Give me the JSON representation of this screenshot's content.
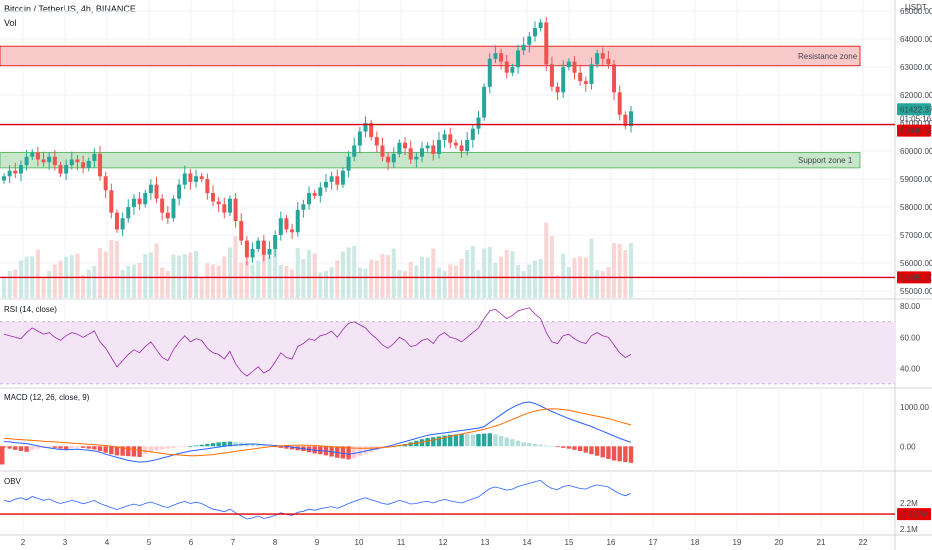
{
  "header": {
    "symbol": "Bitcoin / TetherUS, 4h, BINANCE",
    "volume_label": "Vol",
    "currency": "USDT"
  },
  "colors": {
    "up": "#26a69a",
    "down": "#ef5350",
    "level_line": "#e00000",
    "resistance_fill": "#f8c9c9",
    "support_fill": "#c8e6c9",
    "rsi_band": "#f3e5f5",
    "rsi_line": "#9c27b0",
    "macd_line": "#2962ff",
    "signal_line": "#ff6d00",
    "obv_line": "#2962ff"
  },
  "annotations": {
    "resistance_label": "Resistance zone",
    "support_label": "Support zone 1"
  },
  "panels": {
    "rsi_title": "RSI (14, close)",
    "macd_title": "MACD (12, 26, close, 9)",
    "obv_title": "OBV"
  },
  "chart_data": {
    "type": "candlestick",
    "price_axis": {
      "ticks": [
        "65000.00",
        "64000.00",
        "63000.00",
        "62000.00",
        "61000.00",
        "60000.00",
        "59000.00",
        "58000.00",
        "57000.00",
        "56000.00",
        "55000.00"
      ],
      "ylim": [
        54750,
        65400
      ]
    },
    "price_labels": {
      "last": "61422.37",
      "countdown": "01:05:16",
      "level1": "60946.62",
      "level2": "55485.60"
    },
    "levels": [
      60946.62,
      55485.6
    ],
    "resistance_zone": [
      63050,
      63750
    ],
    "support_zone": [
      59400,
      59950
    ],
    "x_ticks": [
      "2",
      "3",
      "4",
      "5",
      "6",
      "7",
      "8",
      "9",
      "10",
      "11",
      "12",
      "13",
      "14",
      "15",
      "16",
      "17",
      "18",
      "19",
      "20",
      "21",
      "22"
    ],
    "closes": [
      59100,
      59300,
      59200,
      59500,
      59800,
      59950,
      59700,
      59600,
      59800,
      59500,
      59200,
      59500,
      59700,
      59600,
      59400,
      59650,
      59900,
      59100,
      58600,
      57800,
      57200,
      57600,
      58000,
      58300,
      58100,
      58500,
      58800,
      58300,
      57800,
      57600,
      58300,
      58800,
      59200,
      58900,
      59100,
      59000,
      58500,
      58200,
      58100,
      57800,
      58300,
      57500,
      56800,
      56200,
      56500,
      56800,
      56300,
      56500,
      57000,
      57600,
      57200,
      57100,
      57900,
      58100,
      58500,
      58400,
      58700,
      58900,
      59100,
      58800,
      59300,
      59800,
      60200,
      60700,
      61000,
      60500,
      60200,
      59800,
      59600,
      59900,
      60300,
      60100,
      59700,
      59800,
      60100,
      60200,
      59900,
      60400,
      60600,
      60300,
      60200,
      60000,
      60400,
      60800,
      61200,
      62300,
      63300,
      63500,
      63200,
      62800,
      63000,
      63600,
      63800,
      64100,
      64400,
      64600,
      63100,
      62300,
      62100,
      63000,
      63200,
      62800,
      62500,
      62400,
      63100,
      63500,
      63300,
      63100,
      62100,
      61300,
      60900,
      61422
    ],
    "rsi": {
      "ticks": [
        "80.00",
        "60.00",
        "40.00"
      ],
      "ylim": [
        28,
        84
      ],
      "band": [
        30,
        70
      ],
      "values": [
        62,
        61,
        60,
        59,
        63,
        66,
        64,
        62,
        63,
        60,
        58,
        61,
        63,
        62,
        60,
        62,
        64,
        57,
        53,
        47,
        41,
        45,
        49,
        52,
        50,
        54,
        57,
        52,
        47,
        45,
        52,
        57,
        61,
        57,
        59,
        58,
        53,
        50,
        49,
        46,
        51,
        43,
        38,
        35,
        38,
        41,
        37,
        39,
        44,
        50,
        47,
        46,
        54,
        56,
        59,
        58,
        61,
        62,
        64,
        60,
        65,
        69,
        70,
        68,
        66,
        62,
        59,
        55,
        53,
        56,
        60,
        58,
        54,
        55,
        58,
        59,
        56,
        61,
        63,
        60,
        59,
        57,
        60,
        63,
        66,
        72,
        77,
        78,
        75,
        72,
        74,
        77,
        78,
        79,
        75,
        72,
        63,
        57,
        56,
        61,
        62,
        59,
        57,
        56,
        61,
        63,
        61,
        60,
        55,
        50,
        47,
        49
      ],
      "ma": [
        60,
        60,
        60,
        60,
        61,
        61,
        62,
        62,
        62,
        62,
        61,
        61,
        61,
        61,
        61,
        61,
        61,
        60,
        59,
        57,
        55,
        54,
        53,
        52,
        51,
        51,
        51,
        51,
        50,
        50,
        50,
        51,
        52,
        53,
        54,
        55,
        55,
        54,
        54,
        53,
        52,
        51,
        49,
        47,
        45,
        44,
        43,
        42,
        42,
        42,
        42,
        43,
        44,
        45,
        47,
        48,
        50,
        52,
        54,
        55,
        57,
        59,
        61,
        62,
        63,
        63,
        63,
        62,
        61,
        60,
        59,
        58,
        57,
        57,
        57,
        57,
        57,
        58,
        58,
        59,
        59,
        59,
        59,
        60,
        61,
        63,
        65,
        67,
        69,
        70,
        72,
        73,
        74,
        75,
        75,
        75,
        74,
        72,
        70,
        69,
        67,
        65,
        63,
        61,
        60,
        59,
        59,
        59,
        58,
        57,
        56,
        55
      ]
    },
    "macd": {
      "ticks": [
        "1000.00",
        "0.00"
      ],
      "ylim": [
        -600,
        1450
      ],
      "histogram": [
        -30,
        -60,
        -90,
        -120,
        -140,
        -80,
        -60,
        -40,
        -30,
        -40,
        -60,
        -80,
        -50,
        -30,
        -40,
        -60,
        -80,
        -120,
        -160,
        -200,
        -230,
        -240,
        -250,
        -260,
        -270,
        -200,
        -150,
        -100,
        -80,
        -60,
        -40,
        -20,
        -10,
        0,
        20,
        40,
        60,
        80,
        100,
        110,
        120,
        110,
        100,
        80,
        60,
        40,
        20,
        0,
        -20,
        -40,
        -60,
        -80,
        -100,
        -120,
        -150,
        -180,
        -200,
        -230,
        -260,
        -290,
        -310,
        -330,
        -300,
        -250,
        -200,
        -150,
        -100,
        -60,
        -30,
        0,
        30,
        60,
        100,
        140,
        180,
        210,
        230,
        250,
        270,
        290,
        300,
        320,
        310,
        300,
        310,
        320,
        330,
        300,
        260,
        220,
        180,
        140,
        100,
        80,
        60,
        40,
        20,
        0,
        -20,
        -40,
        -60,
        -90,
        -120,
        -160,
        -200,
        -240,
        -280,
        -320,
        -360,
        -380,
        -400,
        -420,
        -440,
        -460
      ],
      "macd": [
        120,
        110,
        90,
        80,
        70,
        40,
        10,
        -20,
        -40,
        -60,
        -80,
        -90,
        -80,
        -70,
        -90,
        -100,
        -120,
        -150,
        -200,
        -240,
        -280,
        -320,
        -360,
        -380,
        -400,
        -390,
        -370,
        -340,
        -300,
        -260,
        -220,
        -180,
        -150,
        -120,
        -100,
        -80,
        -60,
        -40,
        -20,
        0,
        20,
        30,
        40,
        50,
        60,
        50,
        40,
        30,
        20,
        10,
        0,
        -20,
        -40,
        -60,
        -80,
        -100,
        -110,
        -120,
        -140,
        -160,
        -180,
        -200,
        -180,
        -150,
        -120,
        -90,
        -60,
        -30,
        0,
        40,
        80,
        120,
        160,
        200,
        240,
        280,
        300,
        320,
        340,
        360,
        380,
        400,
        420,
        440,
        460,
        500,
        600,
        700,
        800,
        900,
        980,
        1050,
        1100,
        1120,
        1080,
        1020,
        950,
        880,
        820,
        760,
        700,
        650,
        600,
        550,
        500,
        440,
        380,
        320,
        260,
        200,
        150,
        100
      ],
      "signal": [
        200,
        190,
        180,
        170,
        160,
        150,
        140,
        130,
        120,
        110,
        100,
        90,
        80,
        70,
        60,
        50,
        40,
        30,
        20,
        0,
        -20,
        -40,
        -60,
        -80,
        -100,
        -120,
        -140,
        -160,
        -180,
        -200,
        -210,
        -220,
        -230,
        -240,
        -240,
        -230,
        -220,
        -210,
        -190,
        -170,
        -150,
        -130,
        -110,
        -90,
        -70,
        -50,
        -30,
        -10,
        0,
        10,
        20,
        25,
        30,
        30,
        25,
        20,
        10,
        0,
        -10,
        -20,
        -30,
        -40,
        -45,
        -50,
        -50,
        -45,
        -40,
        -30,
        -20,
        0,
        20,
        40,
        60,
        80,
        100,
        130,
        160,
        190,
        220,
        250,
        280,
        310,
        340,
        370,
        400,
        430,
        470,
        510,
        560,
        620,
        680,
        740,
        800,
        850,
        890,
        920,
        940,
        950,
        945,
        930,
        910,
        880,
        850,
        820,
        790,
        760,
        730,
        700,
        660,
        620,
        580,
        540
      ],
      "zero": 0
    },
    "obv": {
      "ticks": [
        "2.2M",
        "2.1M"
      ],
      "highlight": "2.157M",
      "ylim": [
        2080000,
        2320000
      ],
      "level": 2157000,
      "values": [
        2210000,
        2205000,
        2215000,
        2220000,
        2212000,
        2225000,
        2218000,
        2210000,
        2216000,
        2205000,
        2198000,
        2204000,
        2210000,
        2205000,
        2197000,
        2203000,
        2210000,
        2198000,
        2190000,
        2182000,
        2175000,
        2182000,
        2190000,
        2196000,
        2190000,
        2198000,
        2204000,
        2196000,
        2188000,
        2182000,
        2192000,
        2200000,
        2206000,
        2198000,
        2203000,
        2198000,
        2186000,
        2176000,
        2172000,
        2166000,
        2176000,
        2162000,
        2150000,
        2138000,
        2142000,
        2150000,
        2140000,
        2145000,
        2152000,
        2162000,
        2156000,
        2152000,
        2164000,
        2168000,
        2176000,
        2172000,
        2178000,
        2182000,
        2186000,
        2180000,
        2188000,
        2198000,
        2206000,
        2214000,
        2220000,
        2212000,
        2206000,
        2198000,
        2195000,
        2202000,
        2210000,
        2204000,
        2196000,
        2198000,
        2204000,
        2206000,
        2200000,
        2208000,
        2214000,
        2208000,
        2204000,
        2200000,
        2208000,
        2216000,
        2224000,
        2240000,
        2256000,
        2262000,
        2256000,
        2250000,
        2254000,
        2264000,
        2270000,
        2276000,
        2282000,
        2288000,
        2268000,
        2256000,
        2252000,
        2264000,
        2268000,
        2262000,
        2256000,
        2254000,
        2264000,
        2270000,
        2266000,
        2262000,
        2248000,
        2236000,
        2228000,
        2238000
      ]
    }
  }
}
